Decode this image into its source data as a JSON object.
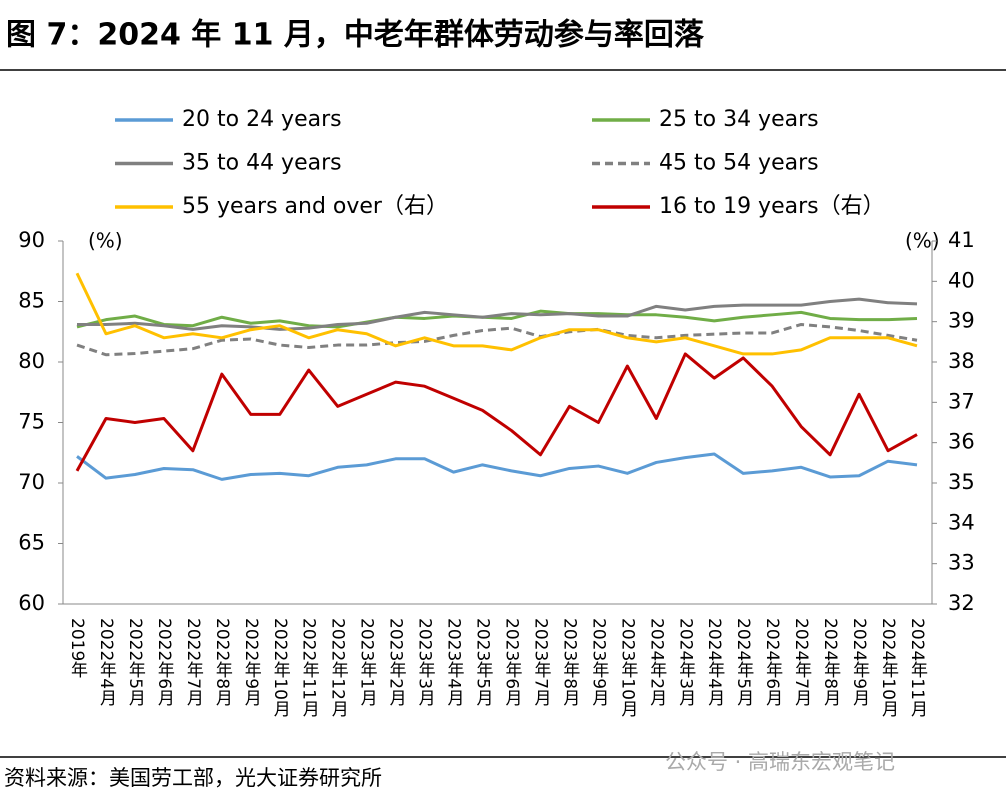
{
  "title": "图 7：2024 年 11 月，中老年群体劳动参与率回落",
  "source": "资料来源：美国劳工部，光大证券研究所",
  "watermark": "公众号 · 高瑞东宏观笔记",
  "chart_data": {
    "type": "line",
    "y_unit": "(%)",
    "y2_unit": "(%)",
    "categories": [
      "2019年",
      "2022年4月",
      "2022年5月",
      "2022年6月",
      "2022年7月",
      "2022年8月",
      "2022年9月",
      "2022年10月",
      "2022年11月",
      "2022年12月",
      "2023年1月",
      "2023年2月",
      "2023年3月",
      "2023年4月",
      "2023年5月",
      "2023年6月",
      "2023年7月",
      "2023年8月",
      "2023年9月",
      "2023年10月",
      "2024年2月",
      "2024年3月",
      "2024年4月",
      "2024年5月",
      "2024年6月",
      "2024年7月",
      "2024年8月",
      "2024年9月",
      "2024年10月",
      "2024年11月"
    ],
    "ylim": [
      60,
      90
    ],
    "yticks": [
      60,
      65,
      70,
      75,
      80,
      85,
      90
    ],
    "y2lim": [
      32,
      41
    ],
    "y2ticks": [
      32,
      33,
      34,
      35,
      36,
      37,
      38,
      39,
      40,
      41
    ],
    "grid": false,
    "series": [
      {
        "name": "20 to 24 years",
        "color": "#5b9bd5",
        "style": "solid",
        "values": [
          72.2,
          70.4,
          70.7,
          71.2,
          71.1,
          70.3,
          70.7,
          70.8,
          70.6,
          71.3,
          71.5,
          72.0,
          72.0,
          70.9,
          71.5,
          71.0,
          70.6,
          71.2,
          71.4,
          70.8,
          71.7,
          72.1,
          72.4,
          70.8,
          71.0,
          71.3,
          70.5,
          70.6,
          71.8,
          71.5
        ]
      },
      {
        "name": "25 to 34 years",
        "color": "#70ad47",
        "style": "solid",
        "values": [
          82.9,
          83.5,
          83.8,
          83.1,
          83.0,
          83.7,
          83.2,
          83.4,
          83.0,
          82.9,
          83.3,
          83.7,
          83.6,
          83.8,
          83.7,
          83.6,
          84.2,
          84.0,
          84.0,
          83.9,
          83.9,
          83.7,
          83.4,
          83.7,
          83.9,
          84.1,
          83.6,
          83.5,
          83.5,
          83.6
        ]
      },
      {
        "name": "35 to 44 years",
        "color": "#808080",
        "style": "solid",
        "values": [
          83.1,
          83.1,
          83.2,
          83.0,
          82.7,
          83.0,
          82.9,
          82.7,
          82.8,
          83.1,
          83.2,
          83.7,
          84.1,
          83.9,
          83.7,
          84.0,
          83.9,
          84.0,
          83.8,
          83.8,
          84.6,
          84.3,
          84.6,
          84.7,
          84.7,
          84.7,
          85.0,
          85.2,
          84.9,
          84.8
        ]
      },
      {
        "name": "45 to 54 years",
        "color": "#808080",
        "style": "dashed",
        "values": [
          81.4,
          80.6,
          80.7,
          80.9,
          81.1,
          81.8,
          81.9,
          81.4,
          81.2,
          81.4,
          81.4,
          81.6,
          81.7,
          82.2,
          82.6,
          82.8,
          82.1,
          82.5,
          82.7,
          82.2,
          82.0,
          82.2,
          82.3,
          82.4,
          82.4,
          83.1,
          82.9,
          82.6,
          82.2,
          81.8
        ]
      },
      {
        "name": "55 years and over（右）",
        "color": "#ffc000",
        "style": "solid",
        "axis": "y2",
        "values": [
          40.2,
          38.7,
          38.9,
          38.6,
          38.7,
          38.6,
          38.8,
          38.9,
          38.6,
          38.8,
          38.7,
          38.4,
          38.6,
          38.4,
          38.4,
          38.3,
          38.6,
          38.8,
          38.8,
          38.6,
          38.5,
          38.6,
          38.4,
          38.2,
          38.2,
          38.3,
          38.6,
          38.6,
          38.6,
          38.4
        ]
      },
      {
        "name": "16 to 19 years（右）",
        "color": "#c00000",
        "style": "solid",
        "axis": "y2",
        "values": [
          35.3,
          36.6,
          36.5,
          36.6,
          35.8,
          37.7,
          36.7,
          36.7,
          37.8,
          36.9,
          37.2,
          37.5,
          37.4,
          37.1,
          36.8,
          36.3,
          35.7,
          36.9,
          36.5,
          37.9,
          36.6,
          38.2,
          37.6,
          38.1,
          37.4,
          36.4,
          35.7,
          37.2,
          35.8,
          36.2
        ]
      }
    ]
  }
}
